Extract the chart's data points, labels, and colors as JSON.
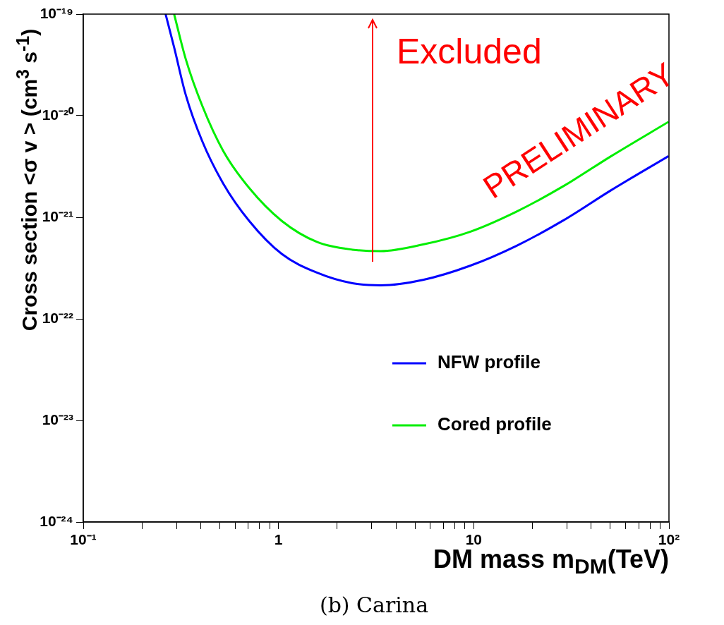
{
  "chart_data": {
    "type": "line",
    "xlabel": "DM mass m$_{DM}$(TeV)",
    "ylabel": "Cross section <σ v > (cm$^{3}$ s$^{-1}$)",
    "log": "xy",
    "grid": false,
    "legend": "bottom right",
    "marker": "none",
    "line_style": "solid",
    "xlim": [
      0.1,
      100
    ],
    "ylim": [
      1e-24,
      1e-19
    ],
    "xticks": [
      {
        "value": 0.1,
        "label": "10⁻¹"
      },
      {
        "value": 0.2,
        "label": null
      },
      {
        "value": 0.3,
        "label": null
      },
      {
        "value": 0.4,
        "label": null
      },
      {
        "value": 0.5,
        "label": null
      },
      {
        "value": 0.6,
        "label": null
      },
      {
        "value": 0.7,
        "label": null
      },
      {
        "value": 0.8,
        "label": null
      },
      {
        "value": 0.9,
        "label": null
      },
      1,
      {
        "value": 2,
        "label": null
      },
      {
        "value": 3,
        "label": null
      },
      {
        "value": 4,
        "label": null
      },
      {
        "value": 5,
        "label": null
      },
      {
        "value": 6,
        "label": null
      },
      {
        "value": 7,
        "label": null
      },
      {
        "value": 8,
        "label": null
      },
      {
        "value": 9,
        "label": null
      },
      10,
      {
        "value": 20,
        "label": null
      },
      {
        "value": 30,
        "label": null
      },
      {
        "value": 40,
        "label": null
      },
      {
        "value": 50,
        "label": null
      },
      {
        "value": 60,
        "label": null
      },
      {
        "value": 70,
        "label": null
      },
      {
        "value": 80,
        "label": null
      },
      {
        "value": 90,
        "label": null
      },
      {
        "value": 100,
        "label": "10²"
      }
    ],
    "yticks": [
      {
        "value": 1e-24,
        "label": "10⁻²⁴"
      },
      {
        "value": 1e-23,
        "label": "10⁻²³"
      },
      {
        "value": 1e-22,
        "label": "10⁻²²"
      },
      {
        "value": 1e-21,
        "label": "10⁻²¹"
      },
      {
        "value": 1e-20,
        "label": "10⁻²⁰"
      },
      {
        "value": 1e-19,
        "label": "10⁻¹⁹"
      }
    ],
    "series": [
      {
        "name": "NFW profile",
        "color": "#0000ff",
        "x": [
          0.264,
          0.292,
          0.335,
          0.407,
          0.521,
          0.708,
          1.04,
          1.58,
          2.39,
          3.34,
          5.5,
          9.57,
          16.6,
          29,
          50.4,
          99.5
        ],
        "values": [
          1e-19,
          4.7e-20,
          1.6e-20,
          5.6e-21,
          2.15e-21,
          9.2e-22,
          4.35e-22,
          2.84e-22,
          2.24e-22,
          2.14e-22,
          2.42e-22,
          3.33e-22,
          5.25e-22,
          9.4e-22,
          1.84e-21,
          4e-21
        ]
      },
      {
        "name": "Cored profile",
        "color": "#00ee00",
        "x": [
          0.292,
          0.335,
          0.407,
          0.521,
          0.708,
          1.04,
          1.58,
          2.39,
          3.34,
          5.5,
          9.57,
          16.6,
          29,
          50.4,
          99.5
        ],
        "values": [
          1e-19,
          3.6e-20,
          1.25e-20,
          4.5e-21,
          1.94e-21,
          9.2e-22,
          5.7e-22,
          4.8e-22,
          4.64e-22,
          5.4e-22,
          7.2e-22,
          1.14e-21,
          2.04e-21,
          3.98e-21,
          8.7e-21
        ]
      }
    ],
    "annotations": [
      "Excluded",
      "PRELIMINARY",
      "(b) Carina"
    ]
  }
}
